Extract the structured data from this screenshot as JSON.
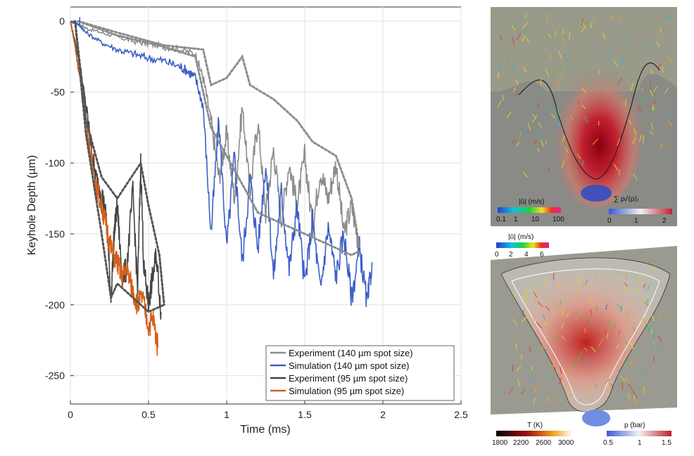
{
  "chart_data": {
    "type": "line",
    "title": "",
    "xlabel": "Time (ms)",
    "ylabel": "Keyhole Depth (µm)",
    "xlim": [
      0,
      2.5
    ],
    "ylim": [
      -270,
      10
    ],
    "xticks": [
      0,
      0.5,
      1,
      1.5,
      2,
      2.5
    ],
    "xtick_labels": [
      "0",
      "0.5",
      "1",
      "1.5",
      "2",
      "2.5"
    ],
    "yticks": [
      0,
      -50,
      -100,
      -150,
      -200,
      -250
    ],
    "ytick_labels": [
      "0",
      "-50",
      "-100",
      "-150",
      "-200",
      "-250"
    ],
    "grid": true,
    "legend_position": "bottom-right",
    "series": [
      {
        "name": "Experiment (140 µm spot size)",
        "color": "#8c8c8c",
        "style": "solid",
        "x": [
          0,
          0.05,
          0.1,
          0.2,
          0.3,
          0.4,
          0.5,
          0.6,
          0.7,
          0.8,
          0.85,
          0.9,
          0.95,
          1.0,
          1.05,
          1.1,
          1.15,
          1.2,
          1.25,
          1.3,
          1.35,
          1.4,
          1.45,
          1.5,
          1.55,
          1.6,
          1.65,
          1.7,
          1.75,
          1.8,
          1.85
        ],
        "y": [
          0,
          -2,
          -5,
          -8,
          -11,
          -14,
          -16,
          -18,
          -20,
          -23,
          -40,
          -70,
          -110,
          -80,
          -125,
          -60,
          -120,
          -70,
          -135,
          -90,
          -140,
          -100,
          -130,
          -95,
          -145,
          -105,
          -125,
          -100,
          -150,
          -130,
          -160
        ]
      },
      {
        "name": "Simulation (140 µm spot size)",
        "color": "#3c5fc8",
        "style": "solid",
        "x": [
          0,
          0.05,
          0.1,
          0.2,
          0.3,
          0.4,
          0.5,
          0.6,
          0.7,
          0.75,
          0.8,
          0.85,
          0.9,
          0.95,
          1.0,
          1.05,
          1.1,
          1.15,
          1.2,
          1.25,
          1.3,
          1.35,
          1.4,
          1.45,
          1.5,
          1.55,
          1.6,
          1.65,
          1.7,
          1.75,
          1.8,
          1.85,
          1.9,
          1.93
        ],
        "y": [
          0,
          -2,
          -8,
          -15,
          -20,
          -23,
          -26,
          -28,
          -32,
          -35,
          -40,
          -60,
          -150,
          -70,
          -160,
          -95,
          -170,
          -110,
          -160,
          -100,
          -180,
          -120,
          -175,
          -130,
          -185,
          -140,
          -190,
          -145,
          -180,
          -150,
          -195,
          -160,
          -200,
          -170
        ]
      },
      {
        "name": "Experiment (95 µm spot size)",
        "color": "#444444",
        "style": "solid",
        "x": [
          0,
          0.03,
          0.06,
          0.1,
          0.13,
          0.16,
          0.2,
          0.23,
          0.26,
          0.28,
          0.3,
          0.33,
          0.36,
          0.4,
          0.43,
          0.45,
          0.47,
          0.5,
          0.52,
          0.55,
          0.58
        ],
        "y": [
          0,
          -15,
          -30,
          -60,
          -85,
          -110,
          -120,
          -140,
          -195,
          -150,
          -130,
          -180,
          -175,
          -120,
          -190,
          -100,
          -175,
          -200,
          -185,
          -165,
          -205
        ]
      },
      {
        "name": "Simulation (95 µm spot size)",
        "color": "#d2601a",
        "style": "solid",
        "x": [
          0,
          0.03,
          0.06,
          0.1,
          0.13,
          0.16,
          0.2,
          0.23,
          0.26,
          0.3,
          0.33,
          0.36,
          0.4,
          0.43,
          0.46,
          0.5,
          0.53,
          0.56
        ],
        "y": [
          0,
          -18,
          -40,
          -70,
          -95,
          -115,
          -130,
          -145,
          -160,
          -170,
          -180,
          -175,
          -190,
          -200,
          -195,
          -215,
          -210,
          -230
        ]
      },
      {
        "name": "Experiment 140 µm bound (upper)",
        "color": "#8c8c8c",
        "style": "dotted",
        "legend": false,
        "x": [
          0.05,
          0.3,
          0.6,
          0.85,
          0.9,
          1.0,
          1.1,
          1.15,
          1.3,
          1.45,
          1.55,
          1.7,
          1.8,
          1.85
        ],
        "y": [
          0,
          -8,
          -17,
          -20,
          -45,
          -40,
          -25,
          -45,
          -55,
          -70,
          -85,
          -95,
          -125,
          -160
        ]
      },
      {
        "name": "Experiment 140 µm bound (lower)",
        "color": "#8c8c8c",
        "style": "dotted",
        "legend": false,
        "x": [
          0.05,
          0.3,
          0.6,
          0.8,
          0.9,
          1.0,
          1.2,
          1.4,
          1.6,
          1.8,
          1.85
        ],
        "y": [
          0,
          -10,
          -18,
          -25,
          -75,
          -95,
          -135,
          -145,
          -155,
          -165,
          -162
        ]
      },
      {
        "name": "Experiment 95 µm bound (upper)",
        "color": "#555555",
        "style": "dotted",
        "legend": false,
        "x": [
          0.03,
          0.1,
          0.2,
          0.3,
          0.45,
          0.5,
          0.57,
          0.6
        ],
        "y": [
          0,
          -70,
          -110,
          -125,
          -100,
          -130,
          -165,
          -200
        ]
      },
      {
        "name": "Experiment 95 µm bound (lower)",
        "color": "#555555",
        "style": "dotted",
        "legend": false,
        "x": [
          0.03,
          0.1,
          0.2,
          0.26,
          0.3,
          0.5,
          0.6
        ],
        "y": [
          0,
          -80,
          -150,
          -195,
          -185,
          -205,
          -200
        ]
      }
    ]
  },
  "panels": {
    "top": {
      "velocity_colorbar": {
        "title": "|ū| (m/s)",
        "ticks": [
          "0.1",
          "1",
          "10",
          "100"
        ]
      },
      "phase_colorbar": {
        "title": "∑ ρᵢ/⟨ρ⟩ᵢ",
        "ticks": [
          "0",
          "1",
          "2"
        ]
      }
    },
    "bottom": {
      "velocity_colorbar": {
        "title": "|ū| (m/s)",
        "ticks": [
          "0",
          "2",
          "4",
          "6"
        ]
      },
      "temperature_colorbar": {
        "title": "T (K)",
        "ticks": [
          "1800",
          "2200",
          "2600",
          "3000"
        ]
      },
      "pressure_colorbar": {
        "title": "p (bar)",
        "ticks": [
          "0.5",
          "1",
          "1.5"
        ]
      }
    }
  }
}
